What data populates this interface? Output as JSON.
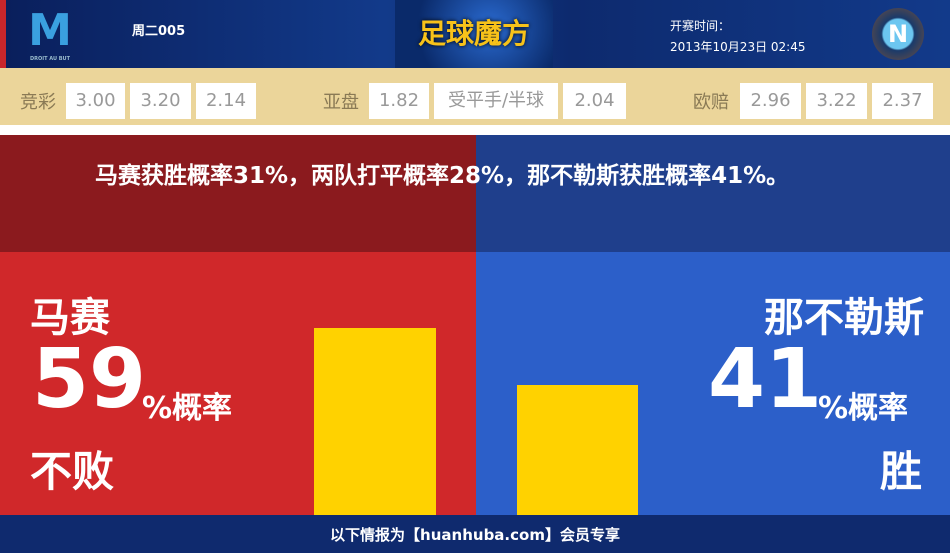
{
  "header": {
    "home_logo": "马赛队徽 DROIT AU BUT",
    "home_logo_caption": "DROIT AU BUT",
    "match_no": "周二005",
    "brand": "足球魔方",
    "kickoff_label": "开赛时间：",
    "kickoff_time": "2013年10月23日 02:45",
    "away_logo": "N"
  },
  "odds": {
    "jingcai": {
      "label": "竞彩",
      "values": [
        "3.00",
        "3.20",
        "2.14"
      ]
    },
    "yapan": {
      "label": "亚盘",
      "values": [
        "1.82",
        "受平手/半球",
        "2.04"
      ]
    },
    "oupei": {
      "label": "欧赔",
      "values": [
        "2.96",
        "3.22",
        "2.37"
      ]
    }
  },
  "summary": "马赛获胜概率31%，两队打平概率28%，那不勒斯获胜概率41%。",
  "home": {
    "name": "马赛",
    "percent": "59",
    "unit": "%概率",
    "outcome": "不败",
    "value": 59
  },
  "away": {
    "name": "那不勒斯",
    "percent": "41",
    "unit": "%概率",
    "outcome": "胜",
    "value": 41
  },
  "colors": {
    "home": "#d0282a",
    "away": "#2c5fc9",
    "bar": "#ffd200"
  },
  "footer": "以下情报为【huanhuba.com】会员专享"
}
